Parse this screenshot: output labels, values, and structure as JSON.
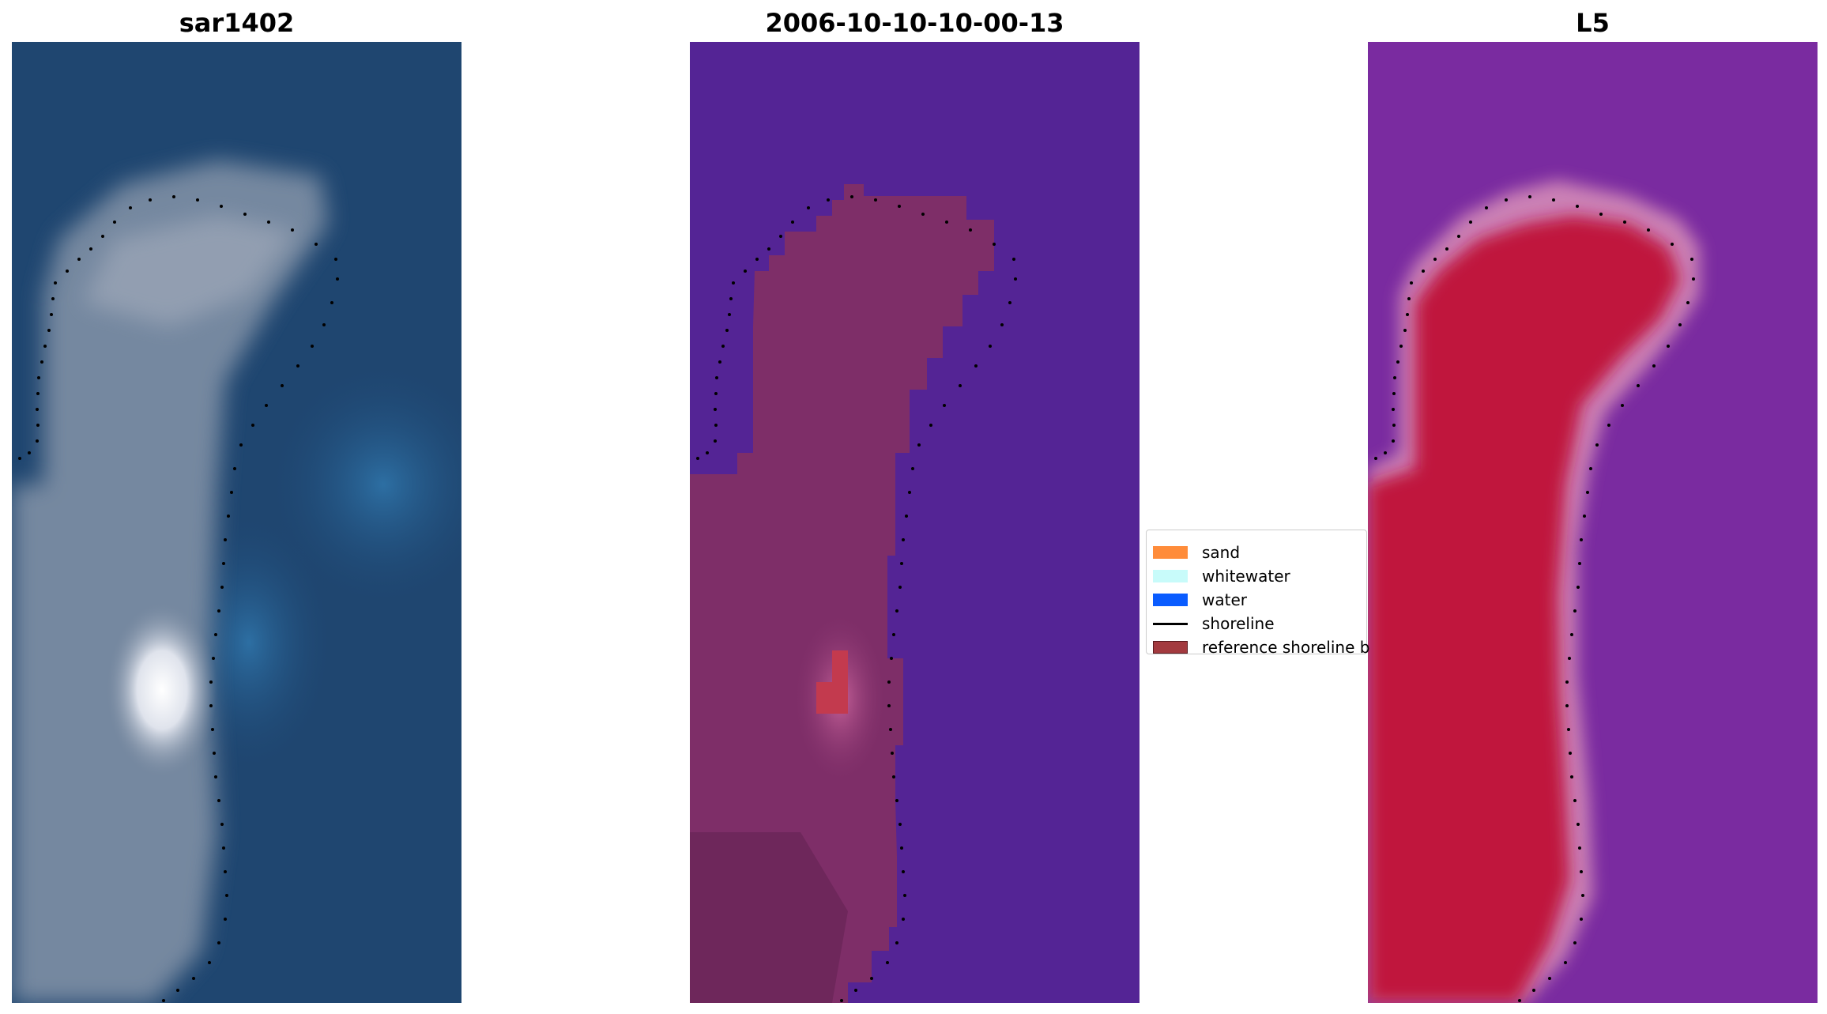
{
  "panels": [
    {
      "title": "sar1402"
    },
    {
      "title": "2006-10-10-10-00-13"
    },
    {
      "title": "L5"
    }
  ],
  "legend": {
    "items": [
      {
        "label": "sand",
        "color": "#ff8c3a",
        "kind": "patch"
      },
      {
        "label": "whitewater",
        "color": "#c8fbfa",
        "kind": "patch"
      },
      {
        "label": "water",
        "color": "#0a5cff",
        "kind": "patch"
      },
      {
        "label": "shoreline",
        "color": "#000000",
        "kind": "line"
      },
      {
        "label": "reference shoreline b",
        "color": "#a33a3f",
        "kind": "patch"
      }
    ]
  },
  "colors": {
    "sar_background": "#1d4470",
    "class_water_overlay": "#542495",
    "class_sand_overlay": "#7e2e68",
    "class_highlight": "#c33a4e",
    "l5_background": "#7a2ba0",
    "l5_land": "#c0143c",
    "shoreline_dots": "#000000"
  }
}
